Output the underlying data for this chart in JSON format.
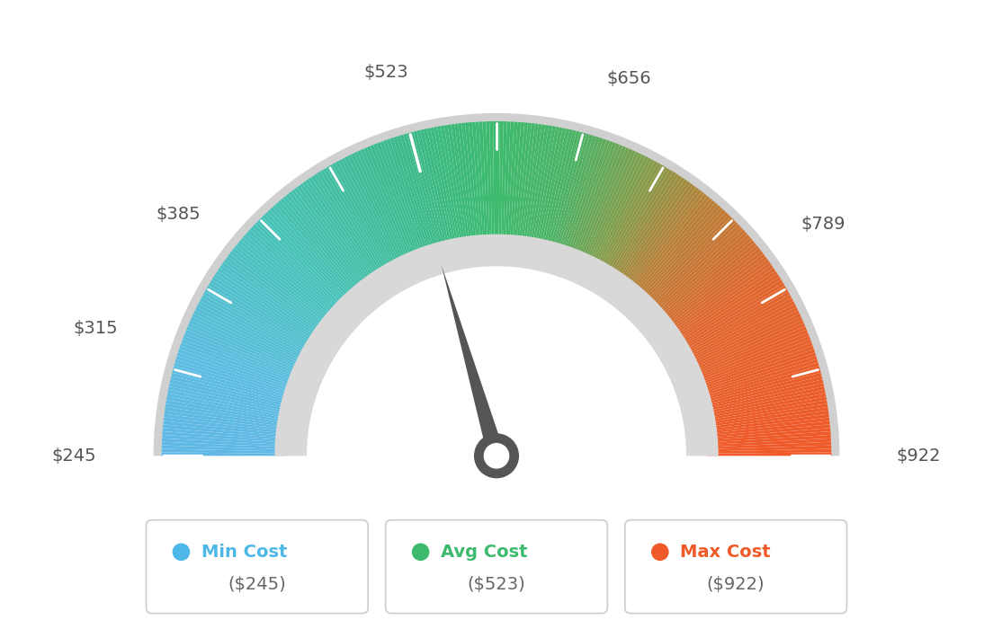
{
  "min_val": 245,
  "max_val": 922,
  "avg_val": 523,
  "labels": [
    "$245",
    "$315",
    "$385",
    "$523",
    "$656",
    "$789",
    "$922"
  ],
  "label_values": [
    245,
    315,
    385,
    523,
    656,
    789,
    922
  ],
  "legend": [
    {
      "label": "Min Cost",
      "value": "($245)",
      "color": "#4db8e8"
    },
    {
      "label": "Avg Cost",
      "value": "($523)",
      "color": "#3dba6e"
    },
    {
      "label": "Max Cost",
      "value": "($922)",
      "color": "#f05a28"
    }
  ],
  "background_color": "#ffffff",
  "color_stops": [
    [
      0.0,
      [
        0.38,
        0.72,
        0.9
      ]
    ],
    [
      0.1,
      [
        0.36,
        0.74,
        0.88
      ]
    ],
    [
      0.25,
      [
        0.28,
        0.76,
        0.72
      ]
    ],
    [
      0.4,
      [
        0.24,
        0.73,
        0.55
      ]
    ],
    [
      0.5,
      [
        0.24,
        0.73,
        0.43
      ]
    ],
    [
      0.58,
      [
        0.3,
        0.7,
        0.4
      ]
    ],
    [
      0.65,
      [
        0.5,
        0.62,
        0.3
      ]
    ],
    [
      0.72,
      [
        0.72,
        0.5,
        0.22
      ]
    ],
    [
      0.82,
      [
        0.88,
        0.4,
        0.18
      ]
    ],
    [
      1.0,
      [
        0.94,
        0.35,
        0.16
      ]
    ]
  ],
  "dot_colors": [
    "#4db8e8",
    "#3dba6e",
    "#f05a28"
  ],
  "label_colors": [
    "#4db8e8",
    "#3dba6e",
    "#f05a28"
  ],
  "needle_color": "#555555",
  "center_circle_color": "#555555",
  "inner_gray_color": "#d8d8d8",
  "outer_gray_color": "#d0d0d0"
}
